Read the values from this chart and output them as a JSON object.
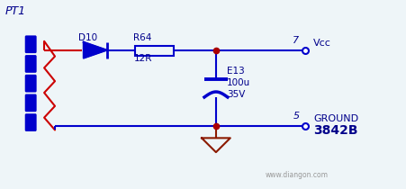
{
  "bg_color": "#eef5f8",
  "line_color": "#0000cc",
  "red_color": "#cc0000",
  "dark_red": "#8b1a00",
  "dot_color": "#aa0000",
  "label_color": "#00008b",
  "pt1_label": "PT1",
  "d10_label": "D10",
  "r64_label": "R64",
  "r64_val": "12R",
  "cap_label": "E13",
  "cap_val1": "100u",
  "cap_val2": "35V",
  "vcc_label": "Vcc",
  "vcc_pin": "7",
  "gnd_label": "GROUND",
  "gnd_pin": "5",
  "ic_label": "3842B",
  "watermark": "www.diangon.com"
}
